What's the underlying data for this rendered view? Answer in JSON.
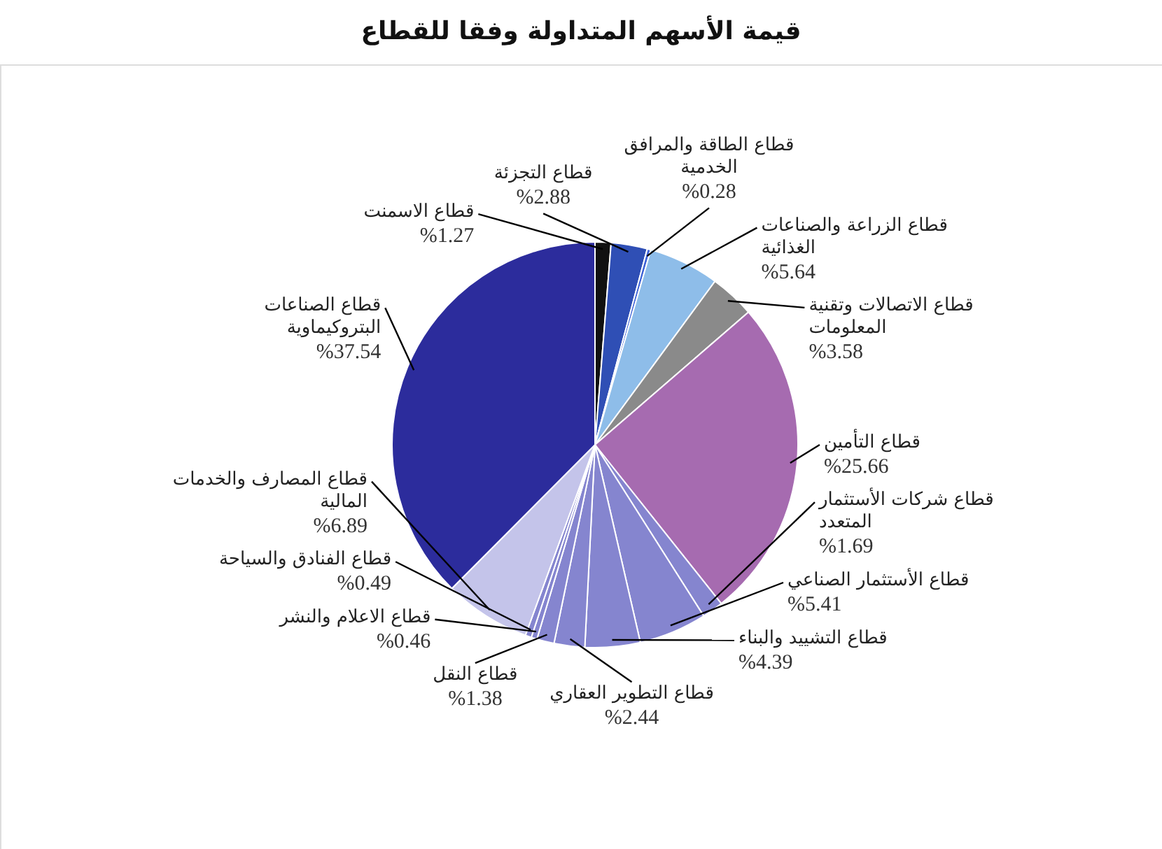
{
  "chart_data": {
    "type": "pie",
    "title": "قيمة الأسهم المتداولة وفقا للقطاع",
    "categories": [
      "قطاع الاسمنت",
      "قطاع التجزئة",
      "قطاع الطاقة والمرافق الخدمية",
      "قطاع الزراعة والصناعات الغذائية",
      "قطاع الاتصالات وتقنية المعلومات",
      "قطاع التأمين",
      "قطاع شركات الأستثمار المتعدد",
      "قطاع الأستثمار الصناعي",
      "قطاع التشييد والبناء",
      "قطاع التطوير العقاري",
      "قطاع النقل",
      "قطاع الاعلام والنشر",
      "قطاع الفنادق والسياحة",
      "قطاع المصارف والخدمات المالية",
      "قطاع الصناعات البتروكيماوية"
    ],
    "values": [
      1.27,
      2.88,
      0.28,
      5.64,
      3.58,
      25.66,
      1.69,
      5.41,
      4.39,
      2.44,
      1.38,
      0.46,
      0.49,
      6.89,
      37.54
    ],
    "value_labels": [
      "%1.27",
      "%2.88",
      "%0.28",
      "%5.64",
      "%3.58",
      "%25.66",
      "%1.69",
      "%5.41",
      "%4.39",
      "%2.44",
      "%1.38",
      "%0.46",
      "%0.49",
      "%6.89",
      "%37.54"
    ],
    "colors": [
      "#111111",
      "#2f4fb5",
      "#3d62d6",
      "#8ebde9",
      "#8a8a8a",
      "#a66bb0",
      "#8585cf",
      "#8585cf",
      "#8585cf",
      "#8585cf",
      "#8585cf",
      "#8585cf",
      "#8585cf",
      "#c4c4ea",
      "#2c2c9c"
    ]
  }
}
